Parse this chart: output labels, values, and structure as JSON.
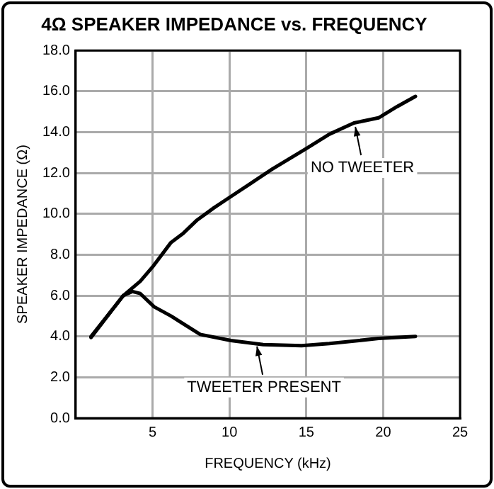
{
  "chart_data": {
    "type": "line",
    "title": "4Ω SPEAKER IMPEDANCE vs. FREQUENCY",
    "xlabel": "FREQUENCY (kHz)",
    "ylabel": "SPEAKER IMPEDANCE (Ω)",
    "xlim": [
      0,
      25
    ],
    "xticks": [
      {
        "value": 0,
        "label": null
      },
      5,
      10,
      15,
      20,
      25
    ],
    "ylim": [
      0,
      18
    ],
    "yticks": [
      {
        "value": 0,
        "label": "0.0"
      },
      {
        "value": 2,
        "label": "2.0"
      },
      {
        "value": 4,
        "label": "4.0"
      },
      {
        "value": 6,
        "label": "6.0"
      },
      {
        "value": 8,
        "label": "8.0"
      },
      {
        "value": 10,
        "label": "10.0"
      },
      {
        "value": 12,
        "label": "12.0"
      },
      {
        "value": 14,
        "label": "14.0"
      },
      {
        "value": 16,
        "label": "16.0"
      },
      {
        "value": 18,
        "label": "18.0"
      }
    ],
    "grid": true,
    "legend": false,
    "marker": "none",
    "line_style": "solid",
    "series": [
      {
        "color": "#000000",
        "x": [
          1.0,
          3.1,
          4.2,
          5.0,
          6.2,
          7.0,
          7.9,
          9.0,
          10.1,
          11.4,
          12.8,
          15.0,
          16.5,
          18.1,
          19.7,
          20.9,
          22.1
        ],
        "values": [
          4.0,
          6.0,
          6.7,
          7.4,
          8.6,
          9.05,
          9.7,
          10.3,
          10.85,
          11.5,
          12.2,
          13.2,
          13.9,
          14.45,
          14.7,
          15.25,
          15.75
        ]
      },
      {
        "color": "#000000",
        "x": [
          1.0,
          3.1,
          3.7,
          4.2,
          5.1,
          6.2,
          8.1,
          10.1,
          12.2,
          14.7,
          16.5,
          19.7,
          22.1
        ],
        "values": [
          3.95,
          6.0,
          6.2,
          6.1,
          5.45,
          5.0,
          4.1,
          3.8,
          3.6,
          3.55,
          3.65,
          3.9,
          4.0
        ]
      }
    ],
    "annotations": [
      {
        "text": "NO TWEETER",
        "x": 18.1,
        "y": 14.4
      },
      {
        "text": "TWEETER PRESENT",
        "x": 11.7,
        "y": 3.65
      }
    ]
  }
}
